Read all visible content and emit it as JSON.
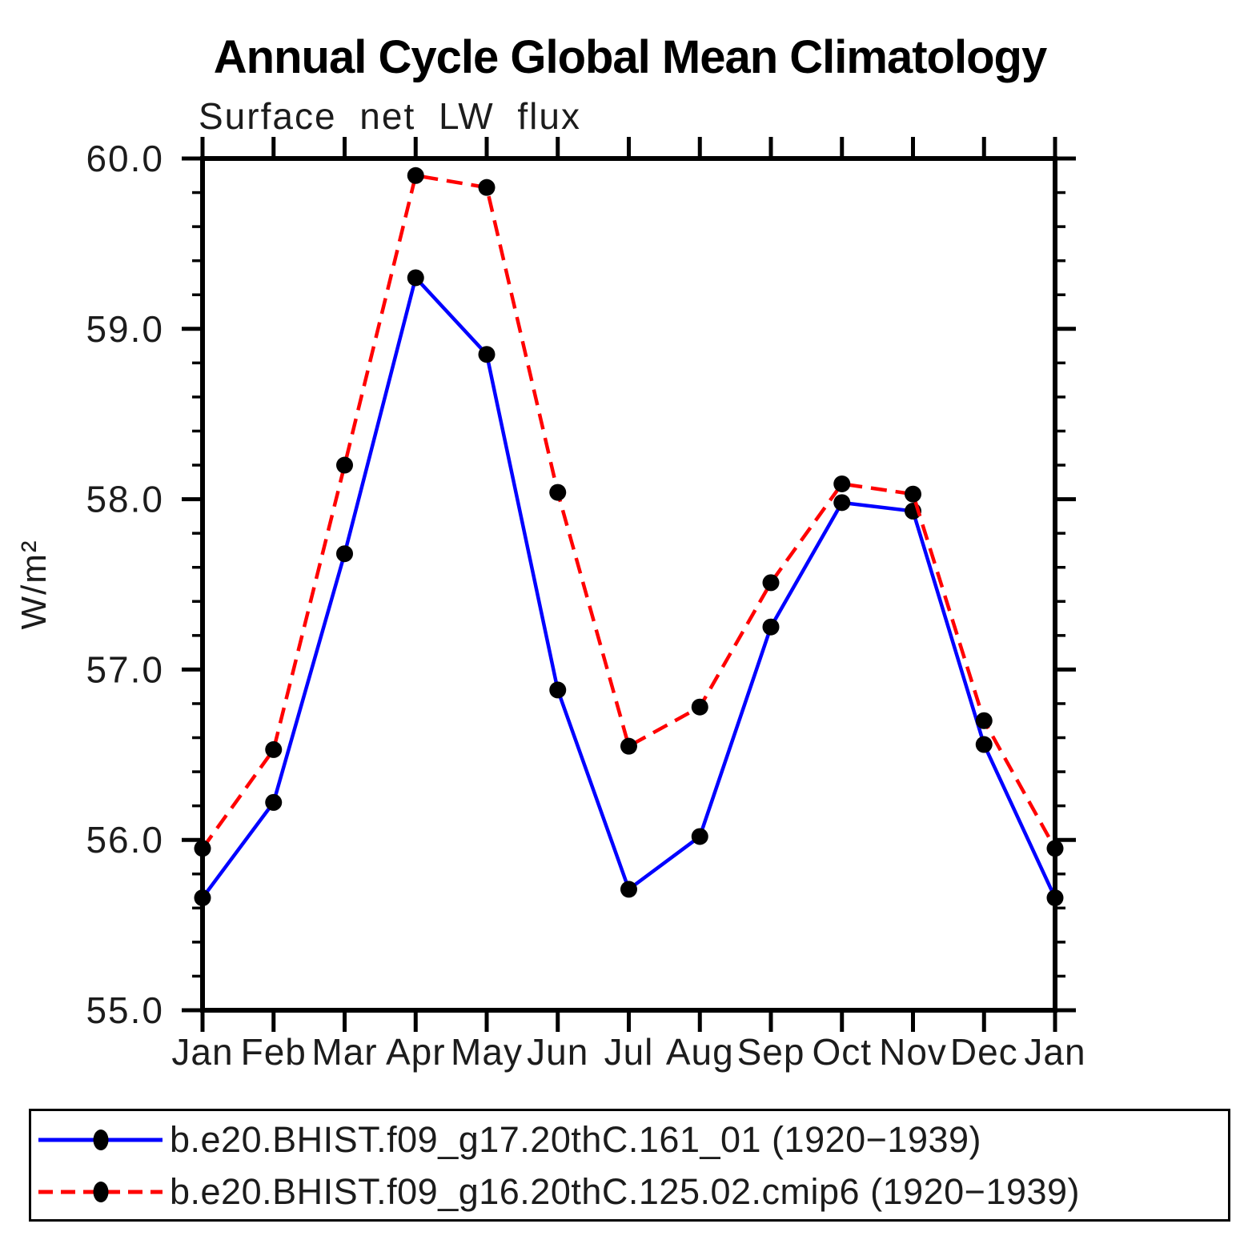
{
  "title": "Annual Cycle Global Mean Climatology",
  "subtitle": "Surface net LW flux",
  "chart_data": {
    "type": "line",
    "x": [
      "Jan",
      "Feb",
      "Mar",
      "Apr",
      "May",
      "Jun",
      "Jul",
      "Aug",
      "Sep",
      "Oct",
      "Nov",
      "Dec",
      "Jan"
    ],
    "xlabel": "",
    "ylabel": "W/m²",
    "ylim": [
      55.0,
      60.0
    ],
    "ytick_labels": [
      "55.0",
      "56.0",
      "57.0",
      "58.0",
      "59.0",
      "60.0"
    ],
    "ytick_major_step": 1.0,
    "ytick_minor_step": 0.2,
    "grid": false,
    "legend_position": "bottom",
    "series": [
      {
        "name": "b.e20.BHIST.f09_g17.20thC.161_01 (1920−1939)",
        "color": "#0000ff",
        "line_style": "solid",
        "marker": "circle",
        "marker_color": "#000000",
        "values": [
          55.66,
          56.22,
          57.68,
          59.3,
          58.85,
          56.88,
          55.71,
          56.02,
          57.25,
          57.98,
          57.93,
          56.56,
          55.66
        ]
      },
      {
        "name": "b.e20.BHIST.f09_g16.20thC.125.02.cmip6 (1920−1939)",
        "color": "#ff0000",
        "line_style": "dashed",
        "marker": "circle",
        "marker_color": "#000000",
        "values": [
          55.95,
          56.53,
          58.2,
          59.9,
          59.83,
          58.04,
          56.55,
          56.78,
          57.51,
          58.09,
          58.03,
          56.7,
          55.95
        ]
      }
    ]
  }
}
